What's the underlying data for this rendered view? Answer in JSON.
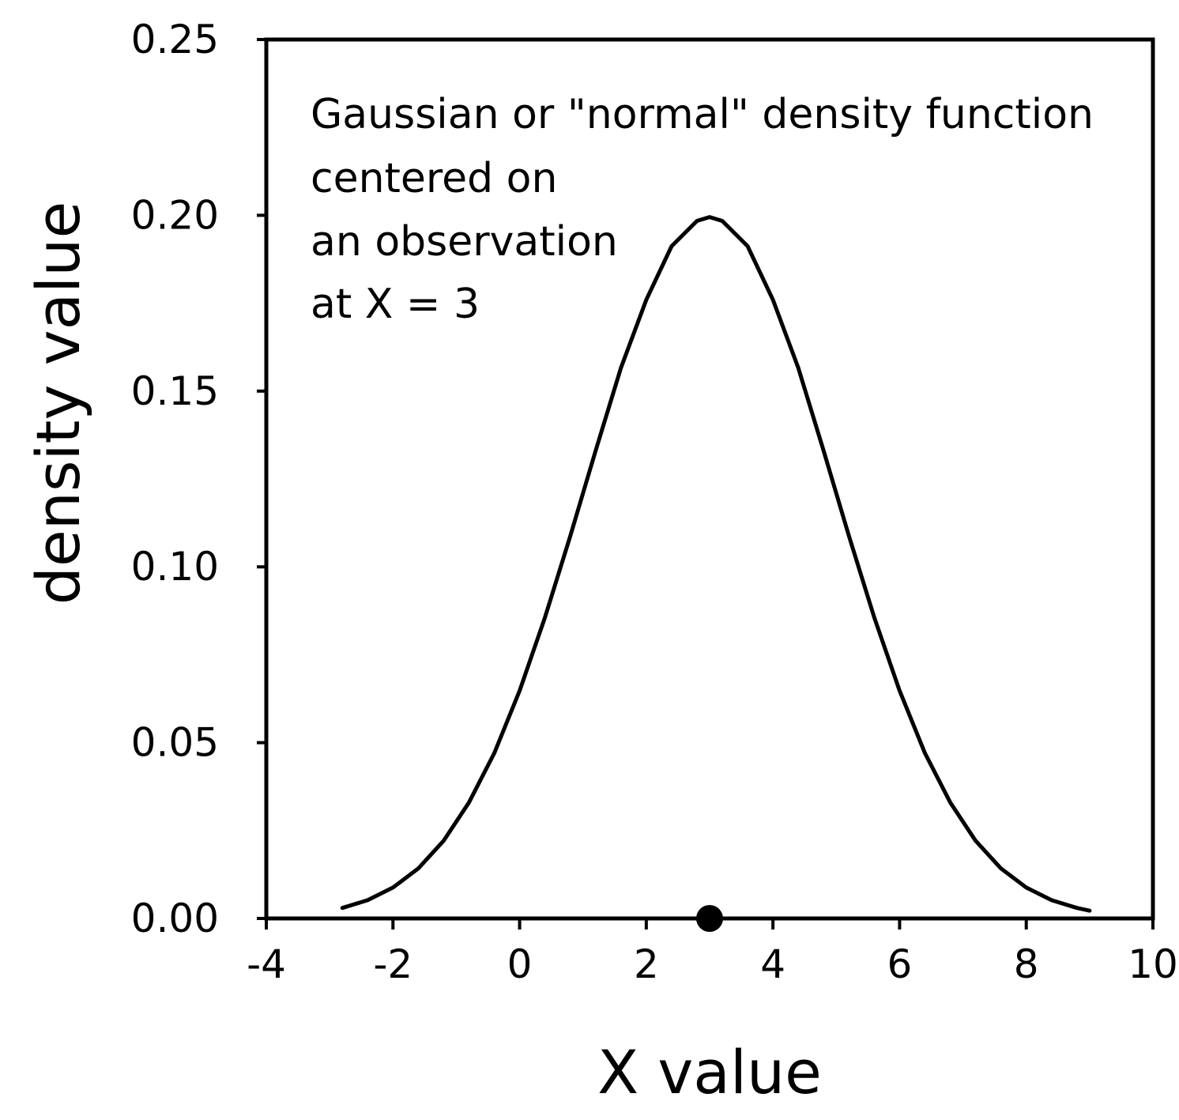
{
  "chart_data": {
    "type": "line",
    "xlabel": "X value",
    "ylabel": "density value",
    "xlim": [
      -4,
      10
    ],
    "ylim": [
      0,
      0.25
    ],
    "x_ticks": [
      "-4",
      "-2",
      "0",
      "2",
      "4",
      "6",
      "8",
      "10"
    ],
    "y_ticks": [
      "0.00",
      "0.05",
      "0.10",
      "0.15",
      "0.20",
      "0.25"
    ],
    "grid": false,
    "legend": "none",
    "annotation_lines": [
      "Gaussian or \"normal\" density function",
      "centered on",
      "an observation",
      "at X = 3"
    ],
    "series": [
      {
        "style": "line",
        "x": [
          -2.8,
          -2.4,
          -2.0,
          -1.6,
          -1.2,
          -0.8,
          -0.4,
          0.0,
          0.4,
          0.8,
          1.2,
          1.6,
          2.0,
          2.4,
          2.8,
          3.0,
          3.2,
          3.6,
          4.0,
          4.4,
          4.8,
          5.2,
          5.6,
          6.0,
          6.4,
          6.8,
          7.2,
          7.6,
          8.0,
          8.4,
          8.8,
          9.0
        ],
        "y": [
          0.003,
          0.0052,
          0.0088,
          0.0142,
          0.0221,
          0.033,
          0.047,
          0.0648,
          0.0856,
          0.1088,
          0.133,
          0.1566,
          0.176,
          0.1912,
          0.1984,
          0.1995,
          0.1984,
          0.1912,
          0.176,
          0.1566,
          0.133,
          0.1088,
          0.0856,
          0.0648,
          0.047,
          0.033,
          0.0221,
          0.0142,
          0.0088,
          0.0052,
          0.003,
          0.0022
        ],
        "color": "#000000"
      },
      {
        "style": "point",
        "x": [
          3
        ],
        "y": [
          0
        ],
        "color": "#000000"
      }
    ]
  }
}
